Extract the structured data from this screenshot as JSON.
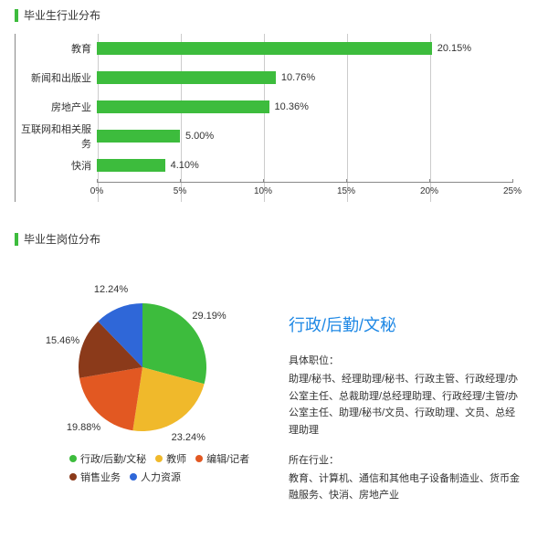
{
  "accent": "#3dbc3d",
  "sec1": {
    "title": "毕业生行业分布",
    "x_max": 25,
    "ticks": [
      0,
      5,
      10,
      15,
      20,
      25
    ],
    "tick_labels": [
      "0%",
      "5%",
      "10%",
      "15%",
      "20%",
      "25%"
    ],
    "rows": [
      {
        "label": "教育",
        "value": 20.15,
        "text": "20.15%"
      },
      {
        "label": "新闻和出版业",
        "value": 10.76,
        "text": "10.76%"
      },
      {
        "label": "房地产业",
        "value": 10.36,
        "text": "10.36%"
      },
      {
        "label": "互联网和相关服务",
        "value": 5.0,
        "text": "5.00%"
      },
      {
        "label": "快消",
        "value": 4.1,
        "text": "4.10%"
      }
    ]
  },
  "sec2": {
    "title": "毕业生岗位分布",
    "slices": [
      {
        "label": "行政/后勤/文秘",
        "value": 29.19,
        "text": "29.19%",
        "color": "#3dbc3d"
      },
      {
        "label": "教师",
        "value": 23.24,
        "text": "23.24%",
        "color": "#f0b92b"
      },
      {
        "label": "编辑/记者",
        "value": 19.88,
        "text": "19.88%",
        "color": "#e25822"
      },
      {
        "label": "销售业务",
        "value": 15.46,
        "text": "15.46%",
        "color": "#8b3a1a"
      },
      {
        "label": "人力资源",
        "value": 12.24,
        "text": "12.24%",
        "color": "#2f67d8"
      }
    ],
    "info": {
      "title": "行政/后勤/文秘",
      "pos_h": "具体职位：",
      "pos_b": "助理/秘书、经理助理/秘书、行政主管、行政经理/办公室主任、总裁助理/总经理助理、行政经理/主管/办公室主任、助理/秘书/文员、行政助理、文员、总经理助理",
      "ind_h": "所在行业：",
      "ind_b": "教育、计算机、通信和其他电子设备制造业、货币金融服务、快消、房地产业"
    }
  }
}
